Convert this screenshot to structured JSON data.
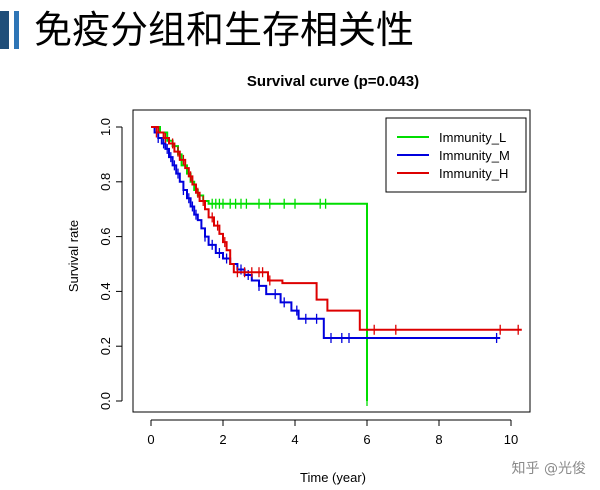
{
  "slide": {
    "title": "免疫分组和生存相关性",
    "watermark": "知乎 @光俊",
    "accent_colors": [
      "#1f4e79",
      "#2e75b6"
    ]
  },
  "chart_data": {
    "type": "line",
    "subtype": "kaplan-meier",
    "title": "Survival curve (p=0.043)",
    "xlabel": "Time (year)",
    "ylabel": "Survival rate",
    "xlim": [
      0,
      10.5
    ],
    "ylim": [
      0,
      1
    ],
    "xticks": [
      0,
      2,
      4,
      6,
      8,
      10
    ],
    "yticks": [
      0.0,
      0.2,
      0.4,
      0.6,
      0.8,
      1.0
    ],
    "legend_position": "top-right",
    "series": [
      {
        "name": "Immunity_L",
        "color": "#00dd00",
        "steps": [
          [
            0,
            1.0
          ],
          [
            0.25,
            0.98
          ],
          [
            0.45,
            0.95
          ],
          [
            0.6,
            0.93
          ],
          [
            0.75,
            0.9
          ],
          [
            0.85,
            0.86
          ],
          [
            1.0,
            0.83
          ],
          [
            1.1,
            0.8
          ],
          [
            1.2,
            0.77
          ],
          [
            1.3,
            0.75
          ],
          [
            1.45,
            0.73
          ],
          [
            1.6,
            0.72
          ],
          [
            6.0,
            0.72
          ],
          [
            6.0,
            0.0
          ]
        ],
        "censored": [
          [
            1.7,
            0.72
          ],
          [
            1.8,
            0.72
          ],
          [
            1.9,
            0.72
          ],
          [
            2.0,
            0.72
          ],
          [
            2.2,
            0.72
          ],
          [
            2.35,
            0.72
          ],
          [
            2.5,
            0.72
          ],
          [
            2.65,
            0.72
          ],
          [
            3.0,
            0.72
          ],
          [
            3.3,
            0.72
          ],
          [
            3.7,
            0.72
          ],
          [
            4.0,
            0.72
          ],
          [
            4.7,
            0.72
          ],
          [
            4.85,
            0.72
          ],
          [
            6.0,
            0.0
          ]
        ]
      },
      {
        "name": "Immunity_M",
        "color": "#0000dd",
        "steps": [
          [
            0,
            1.0
          ],
          [
            0.1,
            0.98
          ],
          [
            0.2,
            0.96
          ],
          [
            0.3,
            0.94
          ],
          [
            0.4,
            0.92
          ],
          [
            0.5,
            0.89
          ],
          [
            0.6,
            0.86
          ],
          [
            0.7,
            0.83
          ],
          [
            0.8,
            0.8
          ],
          [
            0.9,
            0.77
          ],
          [
            1.0,
            0.74
          ],
          [
            1.1,
            0.71
          ],
          [
            1.2,
            0.68
          ],
          [
            1.3,
            0.66
          ],
          [
            1.4,
            0.63
          ],
          [
            1.5,
            0.6
          ],
          [
            1.6,
            0.57
          ],
          [
            1.8,
            0.54
          ],
          [
            2.0,
            0.52
          ],
          [
            2.2,
            0.5
          ],
          [
            2.4,
            0.48
          ],
          [
            2.6,
            0.46
          ],
          [
            2.8,
            0.44
          ],
          [
            3.0,
            0.42
          ],
          [
            3.2,
            0.39
          ],
          [
            3.6,
            0.36
          ],
          [
            3.9,
            0.33
          ],
          [
            4.1,
            0.3
          ],
          [
            4.8,
            0.23
          ],
          [
            9.7,
            0.23
          ]
        ],
        "censored": [
          [
            0.2,
            0.96
          ],
          [
            0.35,
            0.94
          ],
          [
            0.45,
            0.92
          ],
          [
            0.55,
            0.89
          ],
          [
            0.65,
            0.86
          ],
          [
            0.75,
            0.83
          ],
          [
            0.9,
            0.77
          ],
          [
            1.05,
            0.74
          ],
          [
            1.15,
            0.71
          ],
          [
            1.25,
            0.68
          ],
          [
            1.5,
            0.6
          ],
          [
            1.7,
            0.57
          ],
          [
            1.9,
            0.54
          ],
          [
            2.1,
            0.52
          ],
          [
            2.5,
            0.48
          ],
          [
            2.7,
            0.46
          ],
          [
            3.0,
            0.42
          ],
          [
            3.45,
            0.39
          ],
          [
            3.7,
            0.36
          ],
          [
            4.05,
            0.33
          ],
          [
            4.3,
            0.3
          ],
          [
            4.6,
            0.3
          ],
          [
            5.0,
            0.23
          ],
          [
            5.3,
            0.23
          ],
          [
            5.5,
            0.23
          ],
          [
            9.6,
            0.23
          ]
        ]
      },
      {
        "name": "Immunity_H",
        "color": "#dd0000",
        "steps": [
          [
            0,
            1.0
          ],
          [
            0.2,
            0.98
          ],
          [
            0.35,
            0.96
          ],
          [
            0.5,
            0.94
          ],
          [
            0.65,
            0.91
          ],
          [
            0.8,
            0.88
          ],
          [
            0.95,
            0.85
          ],
          [
            1.05,
            0.82
          ],
          [
            1.15,
            0.79
          ],
          [
            1.25,
            0.76
          ],
          [
            1.35,
            0.73
          ],
          [
            1.5,
            0.7
          ],
          [
            1.6,
            0.67
          ],
          [
            1.75,
            0.64
          ],
          [
            1.9,
            0.61
          ],
          [
            2.0,
            0.58
          ],
          [
            2.1,
            0.55
          ],
          [
            2.2,
            0.5
          ],
          [
            2.3,
            0.47
          ],
          [
            3.25,
            0.44
          ],
          [
            3.5,
            0.44
          ],
          [
            3.65,
            0.43
          ],
          [
            4.6,
            0.37
          ],
          [
            4.9,
            0.33
          ],
          [
            5.8,
            0.26
          ],
          [
            10.3,
            0.26
          ]
        ],
        "censored": [
          [
            0.15,
            0.98
          ],
          [
            0.4,
            0.96
          ],
          [
            0.6,
            0.94
          ],
          [
            0.75,
            0.91
          ],
          [
            0.9,
            0.88
          ],
          [
            1.1,
            0.82
          ],
          [
            1.3,
            0.76
          ],
          [
            1.45,
            0.73
          ],
          [
            1.7,
            0.67
          ],
          [
            1.85,
            0.64
          ],
          [
            2.05,
            0.58
          ],
          [
            2.4,
            0.47
          ],
          [
            2.6,
            0.47
          ],
          [
            2.8,
            0.47
          ],
          [
            3.0,
            0.47
          ],
          [
            3.1,
            0.47
          ],
          [
            3.3,
            0.44
          ],
          [
            6.2,
            0.26
          ],
          [
            6.8,
            0.26
          ],
          [
            9.7,
            0.26
          ],
          [
            10.2,
            0.26
          ]
        ]
      }
    ]
  }
}
